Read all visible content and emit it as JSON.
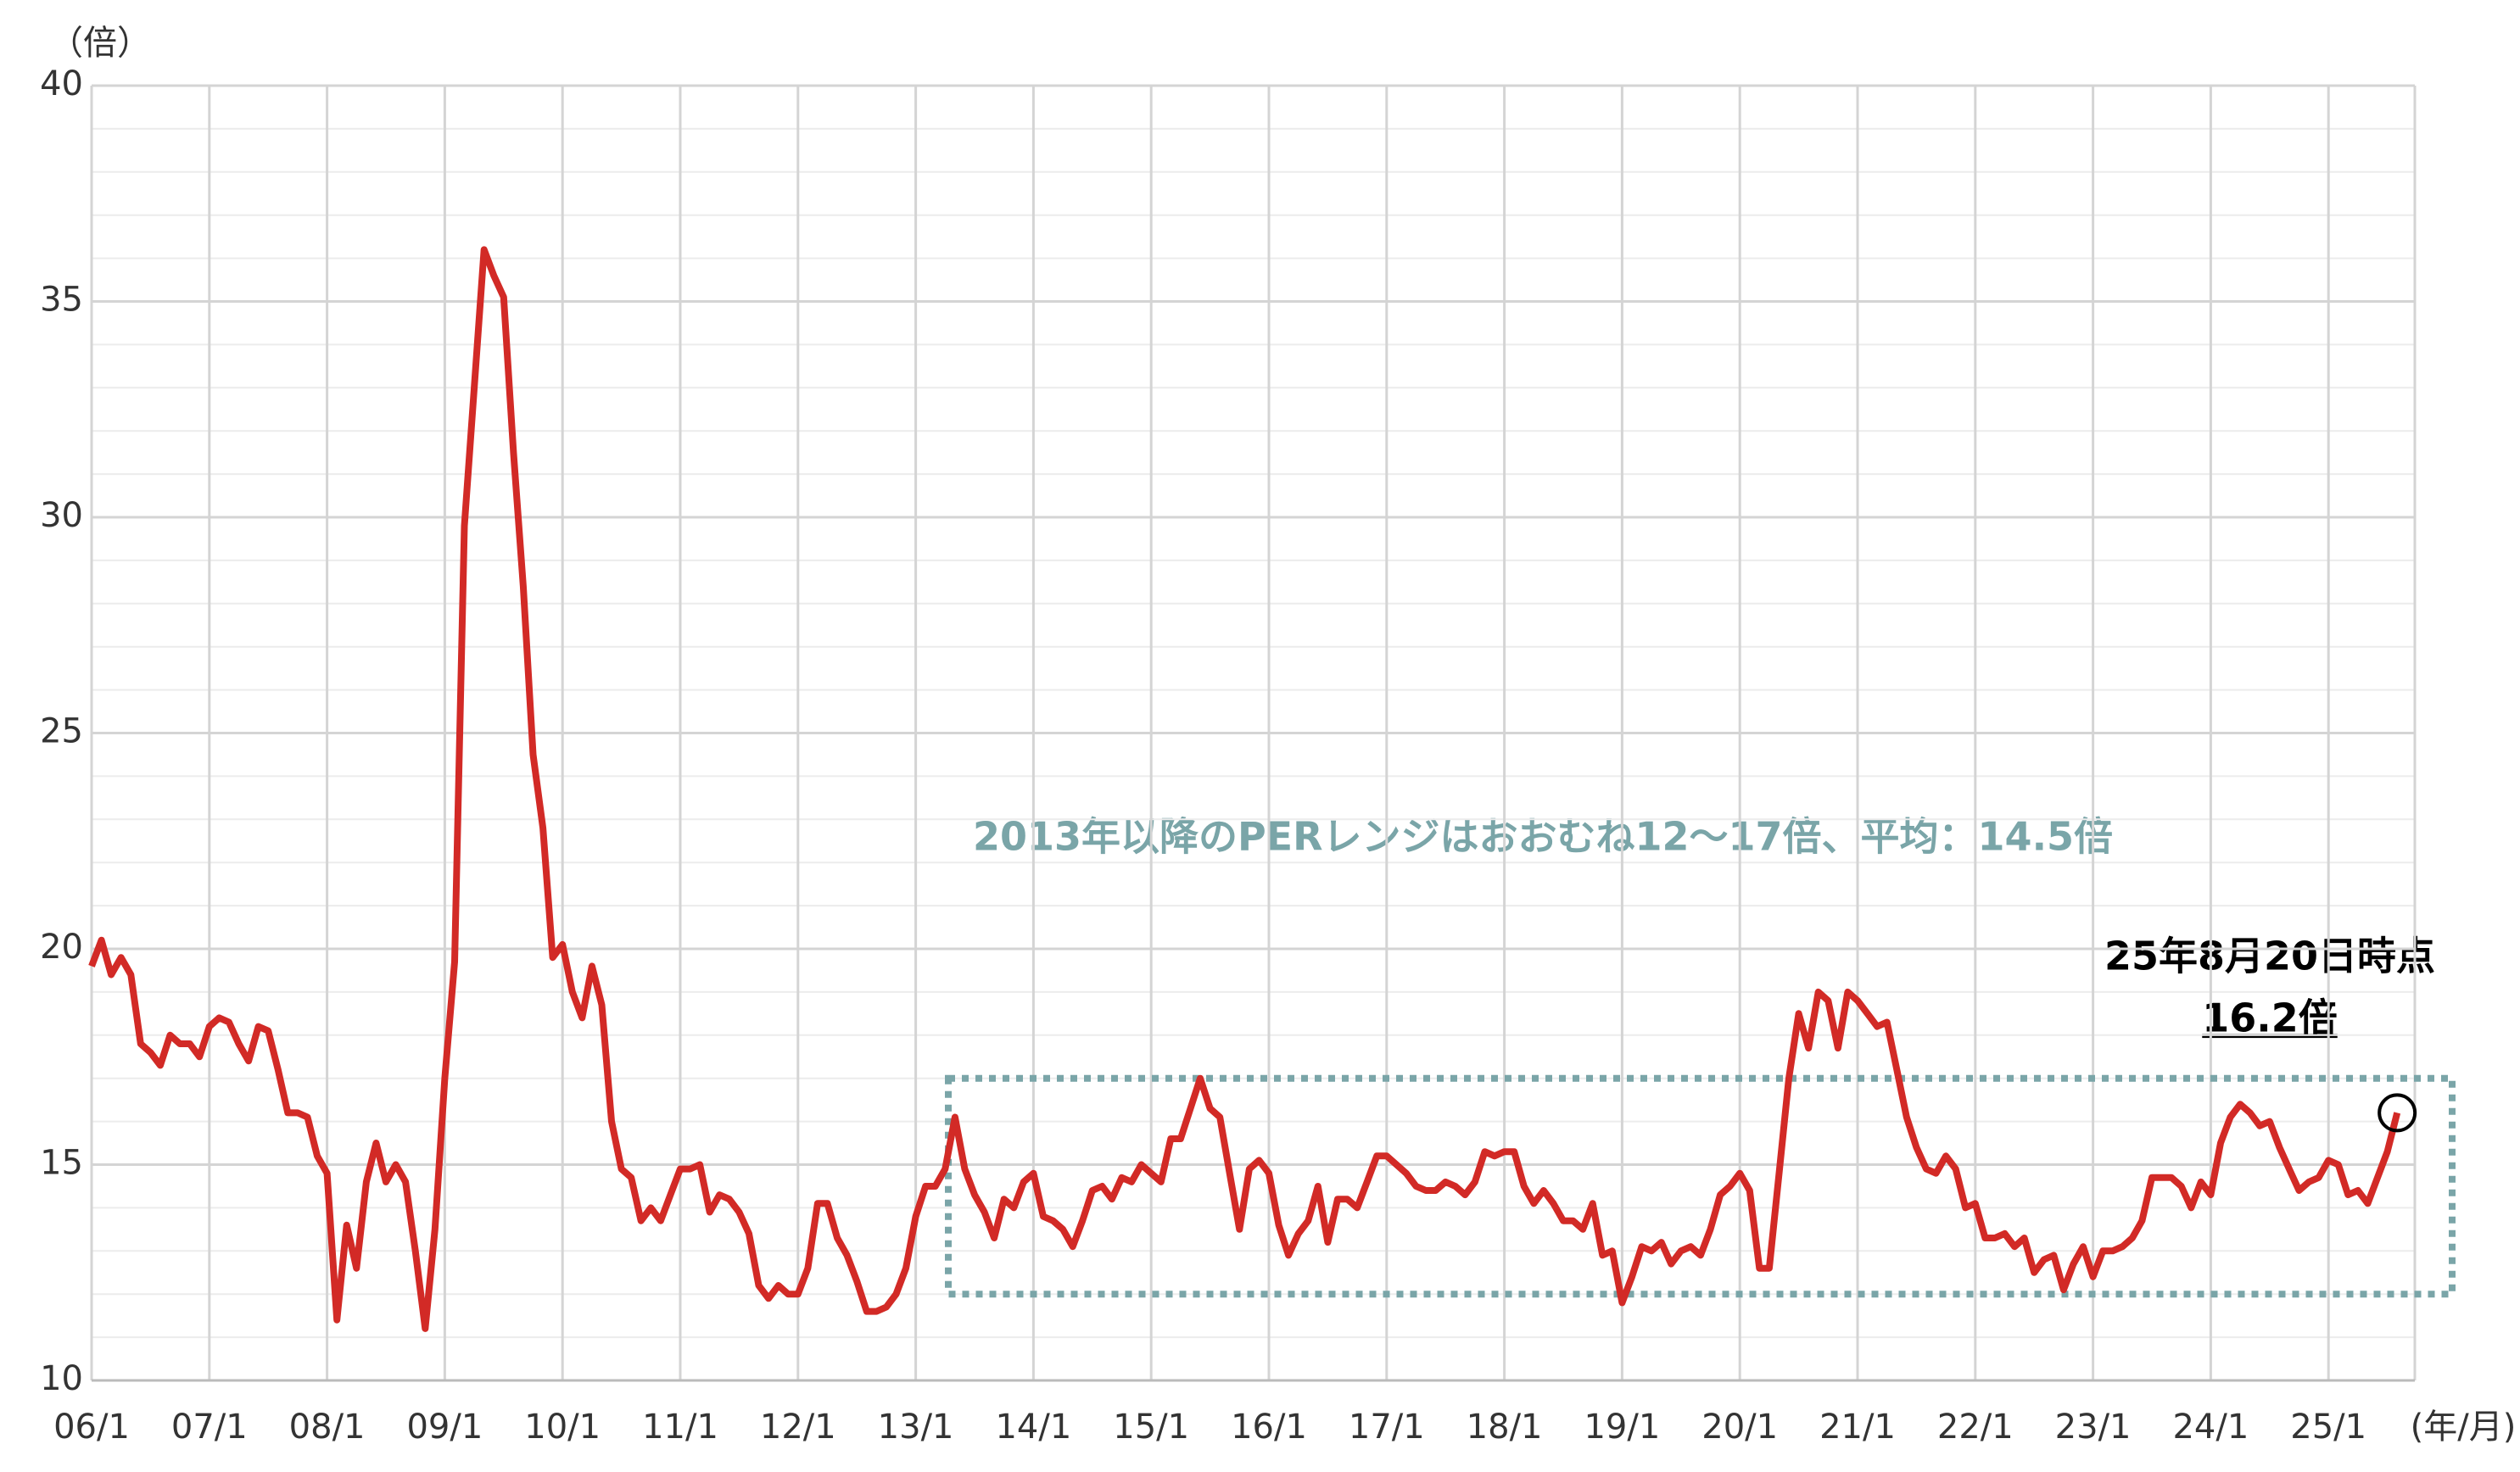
{
  "chart_data": {
    "type": "line",
    "y_unit": "（倍）",
    "x_unit": "(年/月)",
    "categories": [
      "06/1",
      null,
      null,
      null,
      null,
      null,
      null,
      null,
      null,
      null,
      null,
      null,
      "07/1",
      null,
      null,
      null,
      null,
      null,
      null,
      null,
      null,
      null,
      null,
      null,
      "08/1",
      null,
      null,
      null,
      null,
      null,
      null,
      null,
      null,
      null,
      null,
      null,
      "09/1",
      null,
      null,
      null,
      null,
      null,
      null,
      null,
      null,
      null,
      null,
      null,
      "10/1",
      null,
      null,
      null,
      null,
      null,
      null,
      null,
      null,
      null,
      null,
      null,
      "11/1",
      null,
      null,
      null,
      null,
      null,
      null,
      null,
      null,
      null,
      null,
      null,
      "12/1",
      null,
      null,
      null,
      null,
      null,
      null,
      null,
      null,
      null,
      null,
      null,
      "13/1",
      null,
      null,
      null,
      null,
      null,
      null,
      null,
      null,
      null,
      null,
      null,
      "14/1",
      null,
      null,
      null,
      null,
      null,
      null,
      null,
      null,
      null,
      null,
      null,
      "15/1",
      null,
      null,
      null,
      null,
      null,
      null,
      null,
      null,
      null,
      null,
      null,
      "16/1",
      null,
      null,
      null,
      null,
      null,
      null,
      null,
      null,
      null,
      null,
      null,
      "17/1",
      null,
      null,
      null,
      null,
      null,
      null,
      null,
      null,
      null,
      null,
      null,
      "18/1",
      null,
      null,
      null,
      null,
      null,
      null,
      null,
      null,
      null,
      null,
      null,
      "19/1",
      null,
      null,
      null,
      null,
      null,
      null,
      null,
      null,
      null,
      null,
      null,
      "20/1",
      null,
      null,
      null,
      null,
      null,
      null,
      null,
      null,
      null,
      null,
      null,
      "21/1",
      null,
      null,
      null,
      null,
      null,
      null,
      null,
      null,
      null,
      null,
      null,
      "22/1",
      null,
      null,
      null,
      null,
      null,
      null,
      null,
      null,
      null,
      null,
      null,
      "23/1",
      null,
      null,
      null,
      null,
      null,
      null,
      null,
      null,
      null,
      null,
      null,
      "24/1",
      null,
      null,
      null,
      null,
      null,
      null,
      null,
      null,
      null,
      null,
      null,
      "25/1",
      null,
      null,
      null,
      null,
      null,
      null,
      null
    ],
    "series": [
      {
        "color": "#d22a26",
        "values": [
          19.6,
          20.2,
          19.4,
          19.8,
          19.4,
          17.8,
          17.6,
          17.3,
          18.0,
          17.8,
          17.8,
          17.5,
          18.2,
          18.4,
          18.3,
          17.8,
          17.4,
          18.2,
          18.1,
          17.2,
          16.2,
          16.2,
          16.1,
          15.2,
          14.8,
          11.4,
          13.6,
          12.6,
          14.6,
          15.5,
          14.6,
          15.0,
          14.6,
          13.0,
          11.2,
          13.5,
          17.0,
          19.7,
          29.8,
          33.0,
          36.2,
          35.6,
          35.1,
          31.5,
          28.4,
          24.5,
          22.8,
          19.8,
          20.1,
          19.0,
          18.4,
          19.6,
          18.7,
          16.0,
          14.9,
          14.7,
          13.7,
          14.0,
          13.7,
          14.3,
          14.9,
          14.9,
          15.0,
          13.9,
          14.3,
          14.2,
          13.9,
          13.4,
          12.2,
          11.9,
          12.2,
          12.0,
          12.0,
          12.6,
          14.1,
          14.1,
          13.3,
          12.9,
          12.3,
          11.6,
          11.6,
          11.7,
          12.0,
          12.6,
          13.8,
          14.5,
          14.5,
          14.9,
          16.1,
          14.9,
          14.3,
          13.9,
          13.3,
          14.2,
          14.0,
          14.6,
          14.8,
          13.8,
          13.7,
          13.5,
          13.1,
          13.7,
          14.4,
          14.5,
          14.2,
          14.7,
          14.6,
          15.0,
          14.8,
          14.6,
          15.6,
          15.6,
          16.3,
          17.0,
          16.3,
          16.1,
          14.8,
          13.5,
          14.9,
          15.1,
          14.8,
          13.6,
          12.9,
          13.4,
          13.7,
          14.5,
          13.2,
          14.2,
          14.2,
          14.0,
          14.6,
          15.2,
          15.2,
          15.0,
          14.8,
          14.5,
          14.4,
          14.4,
          14.6,
          14.5,
          14.3,
          14.6,
          15.3,
          15.2,
          15.3,
          15.3,
          14.5,
          14.1,
          14.4,
          14.1,
          13.7,
          13.7,
          13.5,
          14.1,
          12.9,
          13.0,
          11.8,
          12.4,
          13.1,
          13.0,
          13.2,
          12.7,
          13.0,
          13.1,
          12.9,
          13.5,
          14.3,
          14.5,
          14.8,
          14.4,
          12.6,
          12.6,
          14.8,
          17.0,
          18.5,
          17.7,
          19.0,
          18.8,
          17.7,
          19.0,
          18.8,
          18.5,
          18.2,
          18.3,
          17.2,
          16.1,
          15.4,
          14.9,
          14.8,
          15.2,
          14.9,
          14.0,
          14.1,
          13.3,
          13.3,
          13.4,
          13.1,
          13.3,
          12.5,
          12.8,
          12.9,
          12.1,
          12.7,
          13.1,
          12.4,
          13.0,
          13.0,
          13.1,
          13.3,
          13.7,
          14.7,
          14.7,
          14.7,
          14.5,
          14.0,
          14.6,
          14.3,
          15.5,
          16.1,
          16.4,
          16.2,
          15.9,
          16.0,
          15.4,
          14.9,
          14.4,
          14.6,
          14.7,
          15.1,
          15.0,
          14.3,
          14.4,
          14.1,
          14.7,
          15.3,
          16.2
        ]
      }
    ],
    "ylim": [
      10,
      40
    ],
    "yticks": [
      10,
      15,
      20,
      25,
      30,
      35,
      40
    ],
    "grid": true,
    "minor_grid_step": 1,
    "range_annotation": {
      "text": "2013年以降のPERレンジはおおむね12～17倍、平均：14.5倍",
      "range": [
        12,
        17
      ],
      "color": "#7aa5a8"
    },
    "latest_annotation": {
      "date": "25年8月20日時点",
      "label": "16.2倍"
    }
  }
}
